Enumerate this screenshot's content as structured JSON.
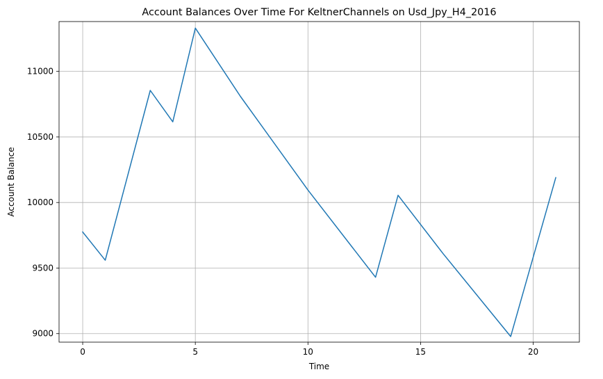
{
  "chart_data": {
    "type": "line",
    "title": "Account Balances Over Time For KeltnerChannels on Usd_Jpy_H4_2016",
    "xlabel": "Time",
    "ylabel": "Account Balance",
    "xlim": [
      -1.05,
      22.05
    ],
    "ylim": [
      8935,
      11380
    ],
    "xticks": [
      0,
      5,
      10,
      15,
      20
    ],
    "yticks": [
      9000,
      9500,
      10000,
      10500,
      11000
    ],
    "grid": true,
    "series": [
      {
        "color": "#1f77b4",
        "x": [
          0,
          1,
          3,
          4,
          5,
          7,
          10,
          13,
          14,
          16,
          19,
          21
        ],
        "y": [
          9775,
          9560,
          10855,
          10615,
          11330,
          10810,
          10095,
          9430,
          10055,
          9610,
          8978,
          10190
        ]
      }
    ]
  }
}
